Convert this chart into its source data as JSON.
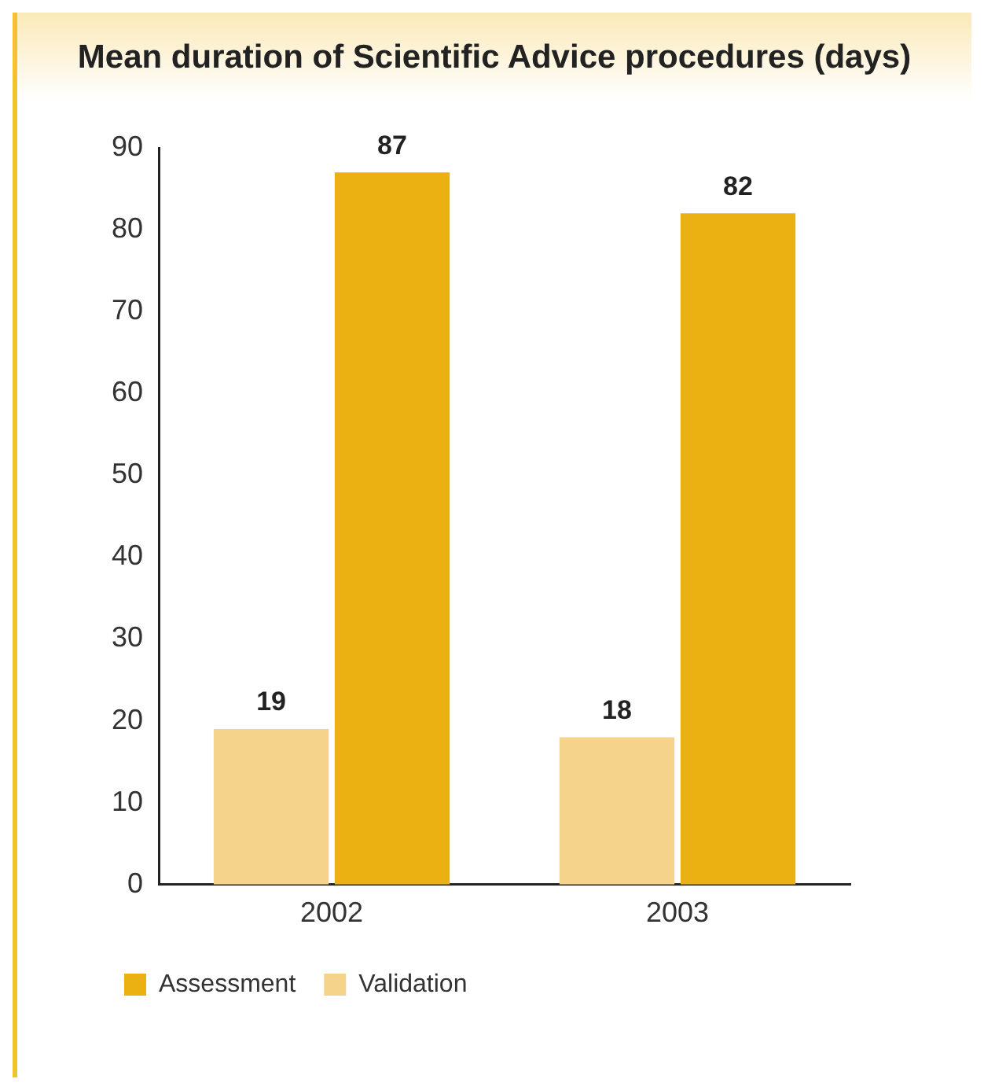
{
  "chart_data": {
    "type": "bar",
    "title": "Mean duration of Scientific Advice procedures (days)",
    "categories": [
      "2002",
      "2003"
    ],
    "series": [
      {
        "name": "Validation",
        "color": "#f6d38b",
        "values": [
          19,
          18
        ]
      },
      {
        "name": "Assessment",
        "color": "#ebb012",
        "values": [
          87,
          82
        ]
      }
    ],
    "ylim": [
      0,
      90
    ],
    "yticks": [
      0,
      10,
      20,
      30,
      40,
      50,
      60,
      70,
      80,
      90
    ],
    "grid": false,
    "legend": "bottom",
    "data_labels": true
  }
}
